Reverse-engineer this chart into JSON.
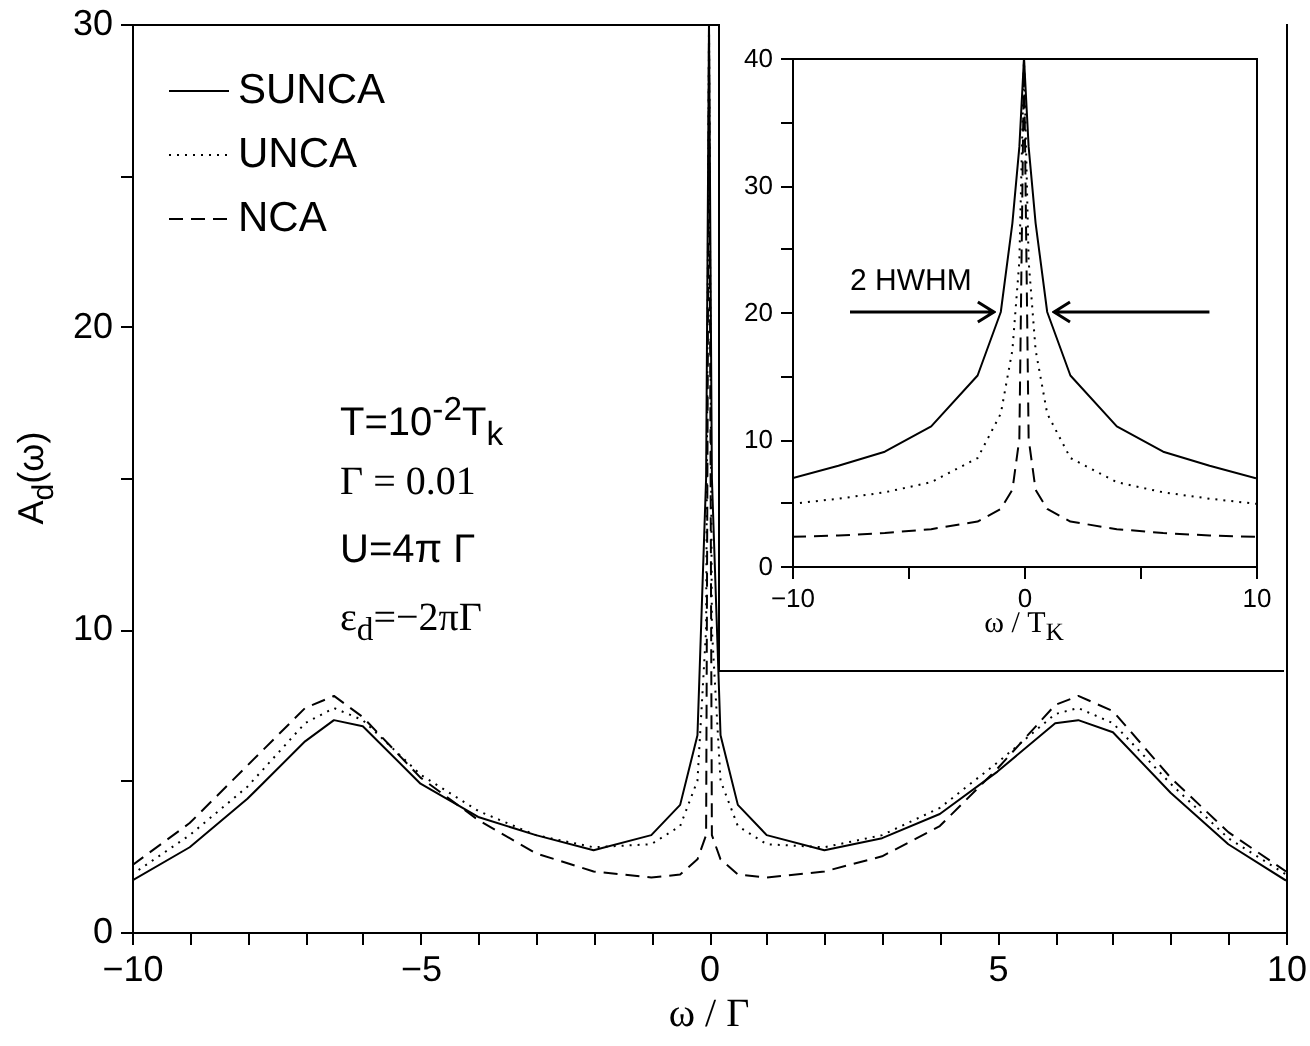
{
  "chart_data": [
    {
      "type": "line",
      "xlabel": "ω / Γ",
      "ylabel": "A$_{d}$(ω)",
      "xlim": [
        -10,
        10
      ],
      "ylim": [
        0,
        30
      ],
      "xticks": [
        -10,
        {
          "value": -9,
          "label": null
        },
        {
          "value": -8,
          "label": null
        },
        {
          "value": -7,
          "label": null
        },
        {
          "value": -6,
          "label": null
        },
        -5,
        {
          "value": -4,
          "label": null
        },
        {
          "value": -3,
          "label": null
        },
        {
          "value": -2,
          "label": null
        },
        {
          "value": -1,
          "label": null
        },
        0,
        {
          "value": 1,
          "label": null
        },
        {
          "value": 2,
          "label": null
        },
        {
          "value": 3,
          "label": null
        },
        {
          "value": 4,
          "label": null
        },
        5,
        {
          "value": 6,
          "label": null
        },
        {
          "value": 7,
          "label": null
        },
        {
          "value": 8,
          "label": null
        },
        {
          "value": 9,
          "label": null
        },
        10
      ],
      "yticks": [
        0,
        {
          "value": 5,
          "label": null
        },
        10,
        {
          "value": 15,
          "label": null
        },
        20,
        {
          "value": 25,
          "label": null
        },
        30
      ],
      "legend": "top left",
      "annotations": [
        "T=10$^{-2}$T$_{k}$",
        "Γ = 0.01",
        "U=4π Γ",
        "ε$_{d}$=−2πΓ"
      ],
      "series": [
        {
          "name": "SUNCA",
          "color": "#000000",
          "line_style": "solid",
          "x": [
            -10,
            -9,
            -8,
            -7,
            -6.5,
            -6,
            -5,
            -4,
            -3,
            -2,
            -1,
            -0.5,
            -0.2,
            -0.05,
            0,
            0.05,
            0.2,
            0.5,
            1,
            2,
            3,
            4,
            5,
            6,
            6.4,
            7,
            8,
            9,
            10
          ],
          "values": [
            1.7,
            2.8,
            4.4,
            6.3,
            7.0,
            6.8,
            4.9,
            3.8,
            3.2,
            2.7,
            3.2,
            4.2,
            6.5,
            15,
            30,
            15,
            6.5,
            4.2,
            3.2,
            2.7,
            3.1,
            3.9,
            5.3,
            6.9,
            7.0,
            6.6,
            4.6,
            2.9,
            1.7
          ]
        },
        {
          "name": "UNCA",
          "color": "#000000",
          "line_style": "dotted",
          "x": [
            -10,
            -9,
            -8,
            -7,
            -6.5,
            -6,
            -5,
            -4,
            -3,
            -2,
            -1,
            -0.5,
            -0.2,
            -0.05,
            0,
            0.05,
            0.2,
            0.5,
            1,
            2,
            3,
            4,
            5,
            6,
            6.4,
            7,
            8,
            9,
            10
          ],
          "values": [
            1.9,
            3.2,
            4.8,
            6.9,
            7.4,
            7.0,
            5.2,
            4.0,
            3.2,
            2.8,
            2.9,
            3.5,
            5,
            10,
            30,
            10,
            5,
            3.5,
            2.9,
            2.8,
            3.2,
            4.1,
            5.6,
            7.2,
            7.4,
            6.9,
            4.9,
            3.1,
            1.9
          ]
        },
        {
          "name": "NCA",
          "color": "#000000",
          "line_style": "dashed",
          "x": [
            -10,
            -9,
            -8,
            -7,
            -6.5,
            -6,
            -5,
            -4,
            -3,
            -2,
            -1,
            -0.5,
            -0.2,
            -0.05,
            0,
            0.05,
            0.2,
            0.5,
            1,
            2,
            3,
            4,
            5,
            6,
            6.4,
            7,
            8,
            9,
            10
          ],
          "values": [
            2.2,
            3.6,
            5.5,
            7.4,
            7.8,
            7.1,
            5.1,
            3.7,
            2.6,
            2.0,
            1.8,
            1.9,
            2.4,
            3.2,
            30,
            3.2,
            2.4,
            1.9,
            1.8,
            2.0,
            2.5,
            3.5,
            5.4,
            7.5,
            7.8,
            7.3,
            5.1,
            3.3,
            2.0
          ]
        }
      ]
    },
    {
      "type": "line",
      "xlabel": "ω / T$_{K}$",
      "xlim": [
        -10,
        10
      ],
      "ylim": [
        0,
        40
      ],
      "xticks": [
        -10,
        {
          "value": -5,
          "label": null
        },
        0,
        {
          "value": 5,
          "label": null
        },
        10
      ],
      "yticks": [
        0,
        {
          "value": 5,
          "label": null
        },
        10,
        {
          "value": 15,
          "label": null
        },
        20,
        {
          "value": 25,
          "label": null
        },
        30,
        {
          "value": 35,
          "label": null
        },
        40
      ],
      "annotations": [
        {
          "text": "2 HWHM",
          "x": -1.3,
          "y": 20
        }
      ],
      "series": [
        {
          "color": "#000000",
          "line_style": "solid",
          "x": [
            -10,
            -8,
            -6,
            -4,
            -2,
            -1,
            -0.5,
            -0.2,
            0,
            0.2,
            0.5,
            1,
            2,
            4,
            6,
            8,
            10
          ],
          "values": [
            6.9,
            7.9,
            9,
            11,
            15,
            20,
            27,
            33,
            40,
            33,
            27,
            20,
            15,
            11,
            9,
            7.9,
            6.9
          ]
        },
        {
          "color": "#000000",
          "line_style": "dotted",
          "x": [
            -10,
            -8,
            -6,
            -4,
            -2,
            -1,
            -0.5,
            -0.2,
            0,
            0.2,
            0.5,
            1,
            2,
            4,
            6,
            8,
            10
          ],
          "values": [
            4.9,
            5.3,
            5.8,
            6.6,
            8.5,
            12,
            17,
            24,
            40,
            24,
            17,
            12,
            8.5,
            6.6,
            5.8,
            5.3,
            4.9
          ]
        },
        {
          "color": "#000000",
          "line_style": "dashed",
          "x": [
            -10,
            -8,
            -6,
            -4,
            -2,
            -1,
            -0.5,
            -0.2,
            0,
            0.2,
            0.5,
            1,
            2,
            4,
            6,
            8,
            10
          ],
          "values": [
            2.3,
            2.4,
            2.6,
            2.9,
            3.5,
            4.5,
            6,
            10,
            40,
            10,
            6,
            4.5,
            3.5,
            2.9,
            2.6,
            2.4,
            2.3
          ]
        }
      ]
    }
  ]
}
